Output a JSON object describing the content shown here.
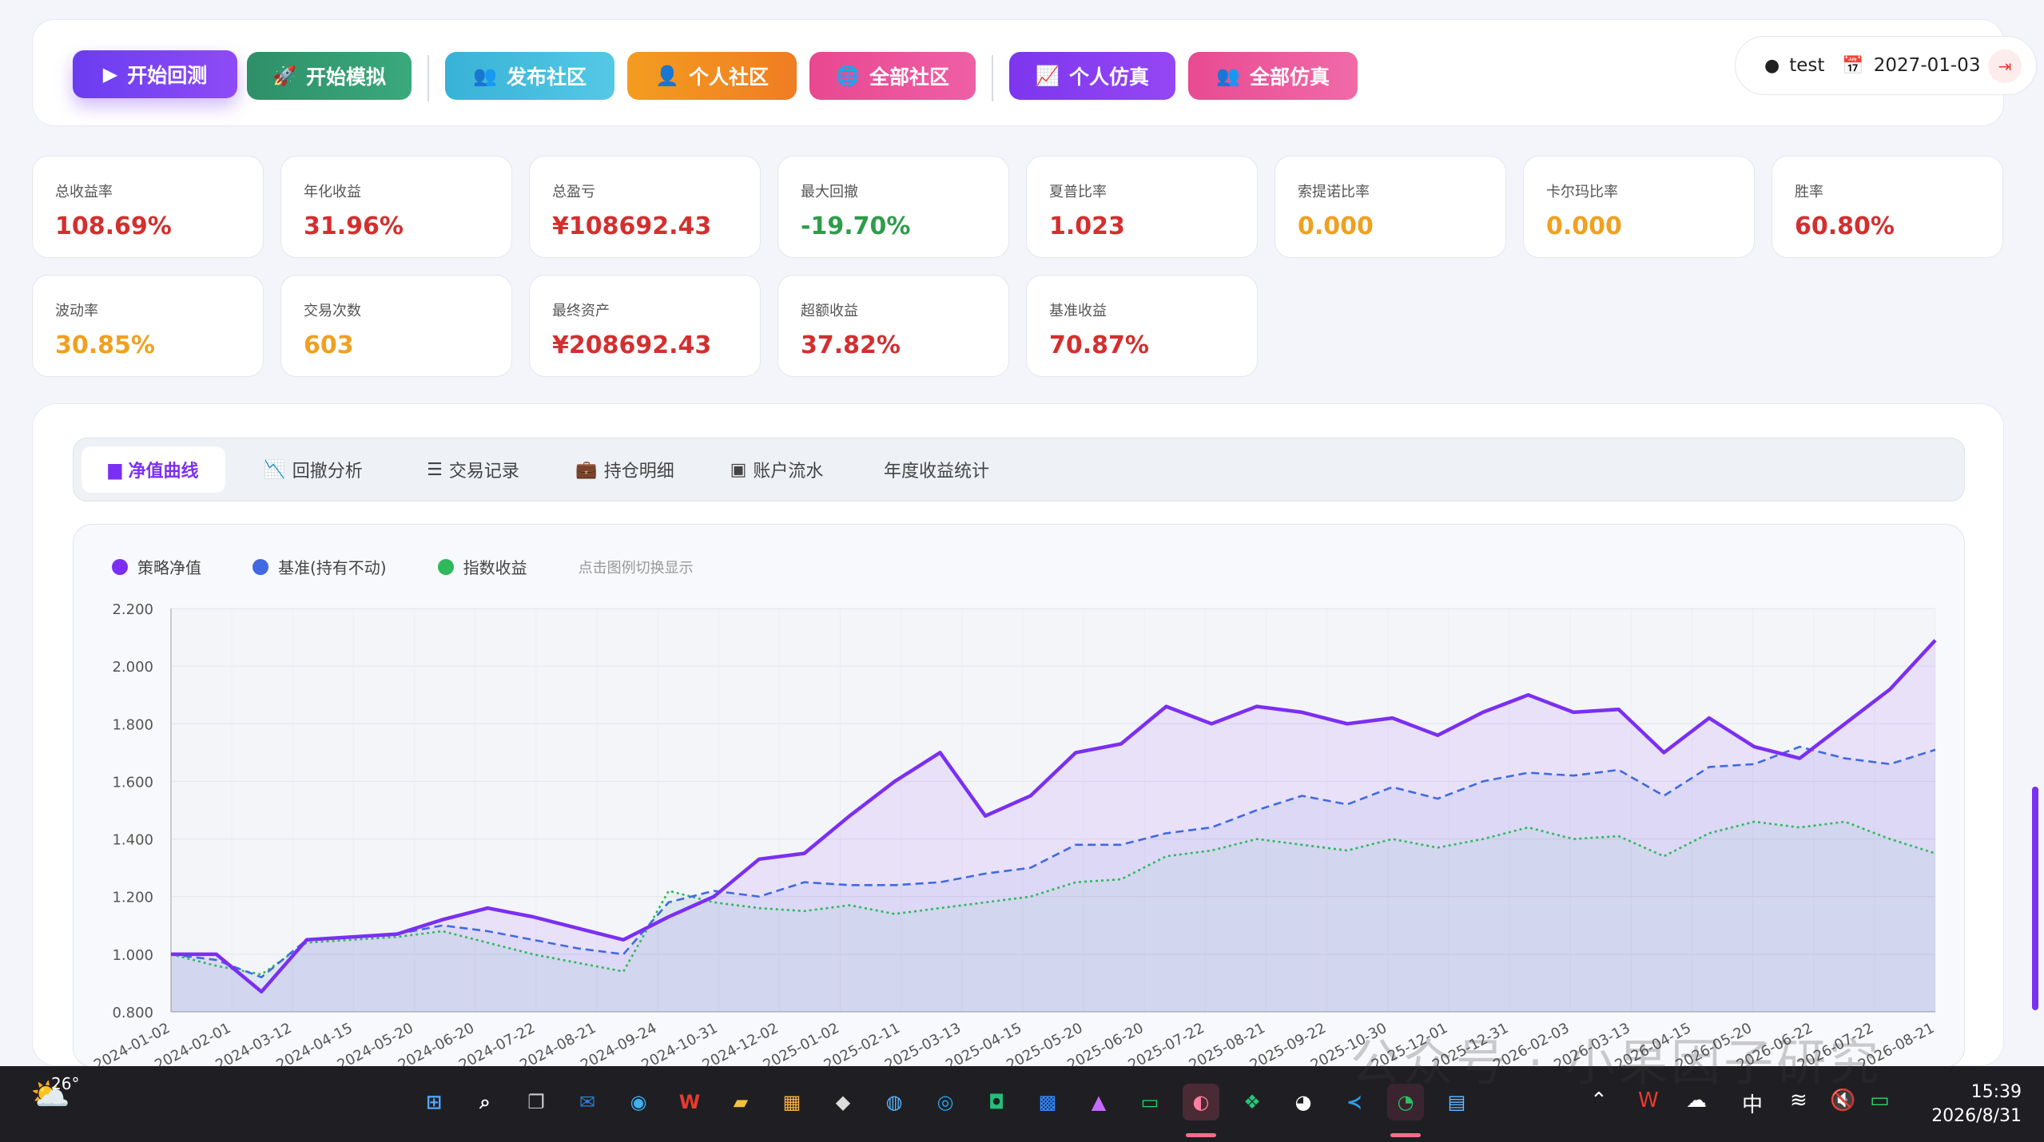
{
  "toolbar": {
    "buttons": [
      {
        "label": "开始回测",
        "icon": "play-icon",
        "color": "#7b3ff2"
      },
      {
        "label": "开始模拟",
        "icon": "rocket-icon",
        "color": "#2f9e72"
      },
      {
        "label": "发布社区",
        "icon": "users-icon",
        "color": "#3fb8d8"
      },
      {
        "label": "个人社区",
        "icon": "user-plus-icon",
        "color": "#f5921e"
      },
      {
        "label": "全部社区",
        "icon": "globe-icon",
        "color": "#e84b93"
      },
      {
        "label": "个人仿真",
        "icon": "chart-line-icon",
        "color": "#8a3df0"
      },
      {
        "label": "全部仿真",
        "icon": "users-icon",
        "color": "#ec4f9a"
      }
    ],
    "user": "test",
    "date": "2027-01-03"
  },
  "metrics": [
    {
      "label": "总收益率",
      "value": "108.69%",
      "tone": "red"
    },
    {
      "label": "年化收益",
      "value": "31.96%",
      "tone": "red"
    },
    {
      "label": "总盈亏",
      "value": "¥108692.43",
      "tone": "red"
    },
    {
      "label": "最大回撤",
      "value": "-19.70%",
      "tone": "green"
    },
    {
      "label": "夏普比率",
      "value": "1.023",
      "tone": "red"
    },
    {
      "label": "索提诺比率",
      "value": "0.000",
      "tone": "orange"
    },
    {
      "label": "卡尔玛比率",
      "value": "0.000",
      "tone": "orange"
    },
    {
      "label": "胜率",
      "value": "60.80%",
      "tone": "red"
    },
    {
      "label": "波动率",
      "value": "30.85%",
      "tone": "orange"
    },
    {
      "label": "交易次数",
      "value": "603",
      "tone": "orange"
    },
    {
      "label": "最终资产",
      "value": "¥208692.43",
      "tone": "red"
    },
    {
      "label": "超额收益",
      "value": "37.82%",
      "tone": "red"
    },
    {
      "label": "基准收益",
      "value": "70.87%",
      "tone": "red"
    }
  ],
  "tabs": [
    {
      "label": "净值曲线",
      "icon": "area-chart-icon",
      "active": true
    },
    {
      "label": "回撤分析",
      "icon": "line-chart-icon",
      "active": false
    },
    {
      "label": "交易记录",
      "icon": "list-icon",
      "active": false
    },
    {
      "label": "持仓明细",
      "icon": "briefcase-icon",
      "active": false
    },
    {
      "label": "账户流水",
      "icon": "ledger-icon",
      "active": false
    },
    {
      "label": "年度收益统计",
      "icon": "",
      "active": false
    }
  ],
  "chart_legend_hint": "点击图例切换显示",
  "chart_data": {
    "type": "line",
    "ylim": [
      0.8,
      2.2
    ],
    "yticks": [
      "0.800",
      "1.000",
      "1.200",
      "1.400",
      "1.600",
      "1.800",
      "2.000",
      "2.200"
    ],
    "xticks": [
      "2024-01-02",
      "2024-02-01",
      "2024-03-12",
      "2024-04-15",
      "2024-05-20",
      "2024-06-20",
      "2024-07-22",
      "2024-08-21",
      "2024-09-24",
      "2024-10-31",
      "2024-12-02",
      "2025-01-02",
      "2025-02-11",
      "2025-03-13",
      "2025-04-15",
      "2025-05-20",
      "2025-06-20",
      "2025-07-22",
      "2025-08-21",
      "2025-09-22",
      "2025-10-30",
      "2025-12-01",
      "2025-12-31",
      "2026-02-03",
      "2026-03-13",
      "2026-04-15",
      "2026-05-20",
      "2026-06-22",
      "2026-07-22",
      "2026-08-21"
    ],
    "series": [
      {
        "name": "策略净值",
        "color": "#7b2ff2",
        "style": "solid",
        "values": [
          1.0,
          1.0,
          0.87,
          1.05,
          1.06,
          1.07,
          1.12,
          1.16,
          1.13,
          1.09,
          1.05,
          1.13,
          1.2,
          1.33,
          1.35,
          1.48,
          1.6,
          1.7,
          1.48,
          1.55,
          1.7,
          1.73,
          1.86,
          1.8,
          1.86,
          1.84,
          1.8,
          1.82,
          1.76,
          1.84,
          1.9,
          1.84,
          1.85,
          1.7,
          1.82,
          1.72,
          1.68,
          1.8,
          1.92,
          2.09
        ]
      },
      {
        "name": "基准(持有不动)",
        "color": "#4169e1",
        "style": "dashed",
        "values": [
          1.0,
          0.98,
          0.92,
          1.05,
          1.06,
          1.07,
          1.1,
          1.08,
          1.05,
          1.02,
          1.0,
          1.18,
          1.22,
          1.2,
          1.25,
          1.24,
          1.24,
          1.25,
          1.28,
          1.3,
          1.38,
          1.38,
          1.42,
          1.44,
          1.5,
          1.55,
          1.52,
          1.58,
          1.54,
          1.6,
          1.63,
          1.62,
          1.64,
          1.55,
          1.65,
          1.66,
          1.72,
          1.68,
          1.66,
          1.71
        ]
      },
      {
        "name": "指数收益",
        "color": "#2fb95c",
        "style": "dotted",
        "values": [
          1.0,
          0.96,
          0.93,
          1.04,
          1.05,
          1.06,
          1.08,
          1.04,
          1.0,
          0.97,
          0.94,
          1.22,
          1.18,
          1.16,
          1.15,
          1.17,
          1.14,
          1.16,
          1.18,
          1.2,
          1.25,
          1.26,
          1.34,
          1.36,
          1.4,
          1.38,
          1.36,
          1.4,
          1.37,
          1.4,
          1.44,
          1.4,
          1.41,
          1.34,
          1.42,
          1.46,
          1.44,
          1.46,
          1.4,
          1.35
        ]
      }
    ]
  },
  "taskbar": {
    "weather_temp": "26°",
    "time": "15:39",
    "date": "2026/8/31",
    "ime": "中"
  },
  "watermark": "公众号 · 小果因子研究"
}
